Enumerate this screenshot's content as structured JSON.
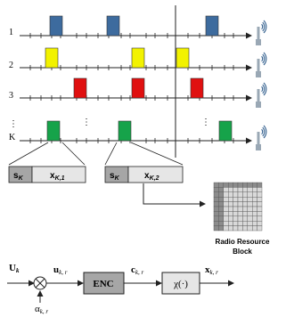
{
  "rows": [
    {
      "label": "1",
      "color": "#3d6b9e",
      "blocks": [
        1,
        4,
        8
      ]
    },
    {
      "label": "2",
      "color": "#f2f200",
      "blocks": [
        0,
        5,
        7
      ]
    },
    {
      "label": "3",
      "color": "#e01010",
      "blocks": [
        2,
        5,
        8
      ]
    },
    {
      "label": "K",
      "color": "#16a34a",
      "blocks": [
        1,
        4,
        9
      ]
    }
  ],
  "vertical_dots": "⋮",
  "row_dots": "⋮",
  "packets": [
    {
      "s": "s",
      "s_sub": "K",
      "x": "x",
      "x_sub": "K,1"
    },
    {
      "s": "s",
      "s_sub": "K",
      "x": "x",
      "x_sub": "K,2"
    }
  ],
  "rrb_label_line1": "Radio Resource",
  "rrb_label_line2": "Block",
  "chain": {
    "input": "U",
    "input_sub": "k",
    "alpha": "α",
    "alpha_sub": "k, r",
    "u": "u",
    "u_sub": "k, r",
    "enc": "ENC",
    "c": "c",
    "c_sub": "k, r",
    "chi": "χ(·)",
    "x": "x",
    "x_sub": "k, r"
  },
  "colors": {
    "axis": "#222222",
    "packet_s_fill": "#a6a6a6",
    "packet_x_fill": "#e6e6e6",
    "grid_dark": "#8c8c8c",
    "grid_light": "#d9d9d9",
    "antenna": "#9aa8b5",
    "wave": "#2f5d8c"
  }
}
